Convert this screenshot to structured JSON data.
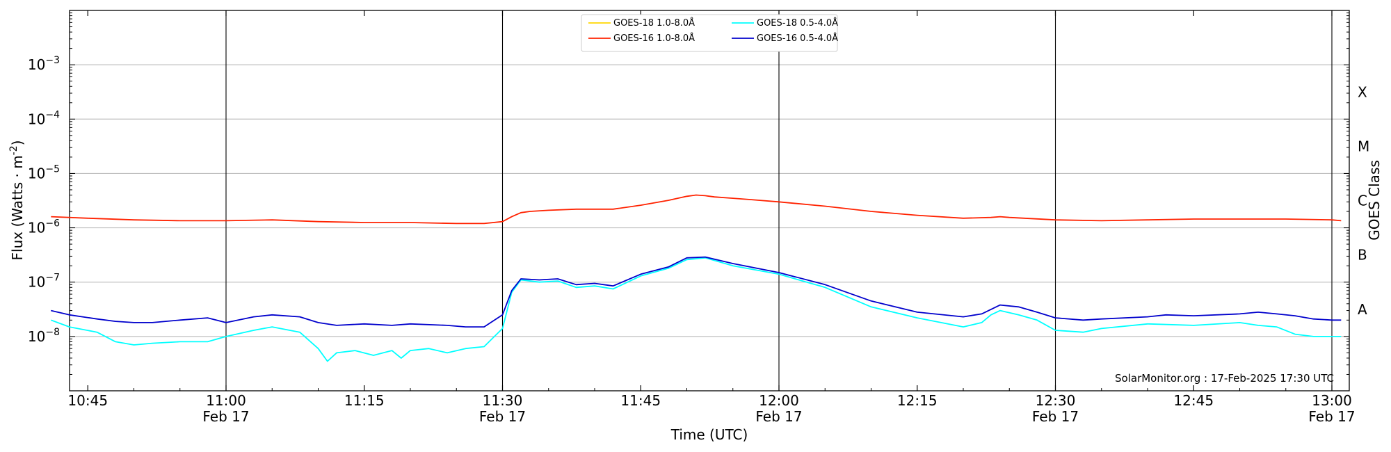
{
  "chart_data": {
    "type": "line",
    "title": "",
    "xlabel": "Time (UTC)",
    "ylabel": "Flux (Watts · m",
    "ylabel_superscript": "-2",
    "ylabel_close": ")",
    "y2label": "GOES Class",
    "yscale": "log",
    "xlim": [
      "10:41",
      "13:02"
    ],
    "ylim": [
      1e-09,
      0.01
    ],
    "grid": "horizontal",
    "legend_position": "top-center",
    "credit": "SolarMonitor.org : 17-Feb-2025 17:30 UTC",
    "x_ticks": [
      {
        "line1": "10:45",
        "line2": ""
      },
      {
        "line1": "11:00",
        "line2": "Feb 17"
      },
      {
        "line1": "11:15",
        "line2": ""
      },
      {
        "line1": "11:30",
        "line2": "Feb 17"
      },
      {
        "line1": "11:45",
        "line2": ""
      },
      {
        "line1": "12:00",
        "line2": "Feb 17"
      },
      {
        "line1": "12:15",
        "line2": ""
      },
      {
        "line1": "12:30",
        "line2": "Feb 17"
      },
      {
        "line1": "12:45",
        "line2": ""
      },
      {
        "line1": "13:00",
        "line2": "Feb 17"
      }
    ],
    "y_ticks": [
      {
        "base": "10",
        "exp": "−8",
        "value": 1e-08
      },
      {
        "base": "10",
        "exp": "−7",
        "value": 1e-07
      },
      {
        "base": "10",
        "exp": "−6",
        "value": 1e-06
      },
      {
        "base": "10",
        "exp": "−5",
        "value": 1e-05
      },
      {
        "base": "10",
        "exp": "−4",
        "value": 0.0001
      },
      {
        "base": "10",
        "exp": "−3",
        "value": 0.001
      }
    ],
    "classes": [
      {
        "label": "A",
        "value": 1e-08
      },
      {
        "label": "B",
        "value": 1e-07
      },
      {
        "label": "C",
        "value": 1e-06
      },
      {
        "label": "M",
        "value": 1e-05
      },
      {
        "label": "X",
        "value": 0.0001
      }
    ],
    "vlines": [
      "11:00",
      "11:30",
      "12:00",
      "12:30",
      "13:00"
    ],
    "series": [
      {
        "name": "GOES-18 1.0-8.0Å",
        "color": "#FFD700",
        "x": [],
        "values": []
      },
      {
        "name": "GOES-16 1.0-8.0Å",
        "color": "#FF2200",
        "x": [
          "10:41",
          "10:45",
          "10:50",
          "10:55",
          "11:00",
          "11:05",
          "11:10",
          "11:15",
          "11:20",
          "11:25",
          "11:28",
          "11:30",
          "11:31",
          "11:32",
          "11:33",
          "11:35",
          "11:38",
          "11:40",
          "11:42",
          "11:45",
          "11:48",
          "11:50",
          "11:51",
          "11:52",
          "11:53",
          "11:55",
          "11:57",
          "12:00",
          "12:05",
          "12:10",
          "12:15",
          "12:20",
          "12:23",
          "12:24",
          "12:25",
          "12:30",
          "12:35",
          "12:40",
          "12:45",
          "12:50",
          "12:55",
          "13:00",
          "13:01"
        ],
        "values": [
          1.6e-06,
          1.5e-06,
          1.4e-06,
          1.35e-06,
          1.35e-06,
          1.4e-06,
          1.3e-06,
          1.25e-06,
          1.25e-06,
          1.2e-06,
          1.2e-06,
          1.3e-06,
          1.6e-06,
          1.9e-06,
          2e-06,
          2.1e-06,
          2.2e-06,
          2.2e-06,
          2.2e-06,
          2.6e-06,
          3.2e-06,
          3.8e-06,
          4e-06,
          3.9e-06,
          3.7e-06,
          3.5e-06,
          3.3e-06,
          3e-06,
          2.5e-06,
          2e-06,
          1.7e-06,
          1.5e-06,
          1.55e-06,
          1.6e-06,
          1.55e-06,
          1.4e-06,
          1.35e-06,
          1.4e-06,
          1.45e-06,
          1.45e-06,
          1.45e-06,
          1.4e-06,
          1.35e-06
        ]
      },
      {
        "name": "GOES-18 0.5-4.0Å",
        "color": "#00FFFF",
        "x": [
          "10:41",
          "10:43",
          "10:46",
          "10:48",
          "10:50",
          "10:52",
          "10:55",
          "10:58",
          "11:00",
          "11:03",
          "11:05",
          "11:08",
          "11:10",
          "11:11",
          "11:12",
          "11:14",
          "11:16",
          "11:18",
          "11:19",
          "11:20",
          "11:22",
          "11:24",
          "11:26",
          "11:28",
          "11:30",
          "11:31",
          "11:32",
          "11:34",
          "11:36",
          "11:38",
          "11:40",
          "11:42",
          "11:45",
          "11:48",
          "11:50",
          "11:52",
          "11:55",
          "12:00",
          "12:05",
          "12:10",
          "12:15",
          "12:20",
          "12:22",
          "12:23",
          "12:24",
          "12:26",
          "12:28",
          "12:30",
          "12:33",
          "12:35",
          "12:40",
          "12:45",
          "12:50",
          "12:52",
          "12:54",
          "12:56",
          "12:58",
          "13:00",
          "13:01"
        ],
        "values": [
          2e-08,
          1.5e-08,
          1.2e-08,
          8e-09,
          7e-09,
          7.5e-09,
          8e-09,
          8e-09,
          1e-08,
          1.3e-08,
          1.5e-08,
          1.2e-08,
          6e-09,
          3.5e-09,
          5e-09,
          5.5e-09,
          4.5e-09,
          5.5e-09,
          4e-09,
          5.5e-09,
          6e-09,
          5e-09,
          6e-09,
          6.5e-09,
          1.4e-08,
          6.5e-08,
          1.1e-07,
          1e-07,
          1.05e-07,
          8e-08,
          8.5e-08,
          7.5e-08,
          1.3e-07,
          1.8e-07,
          2.6e-07,
          2.8e-07,
          2e-07,
          1.4e-07,
          8e-08,
          3.5e-08,
          2.2e-08,
          1.5e-08,
          1.8e-08,
          2.5e-08,
          3e-08,
          2.5e-08,
          2e-08,
          1.3e-08,
          1.2e-08,
          1.4e-08,
          1.7e-08,
          1.6e-08,
          1.8e-08,
          1.6e-08,
          1.5e-08,
          1.1e-08,
          1e-08,
          1e-08,
          1e-08
        ]
      },
      {
        "name": "GOES-16 0.5-4.0Å",
        "color": "#0000CC",
        "x": [
          "10:41",
          "10:43",
          "10:46",
          "10:48",
          "10:50",
          "10:52",
          "10:55",
          "10:58",
          "11:00",
          "11:03",
          "11:05",
          "11:08",
          "11:10",
          "11:12",
          "11:15",
          "11:18",
          "11:20",
          "11:24",
          "11:26",
          "11:28",
          "11:30",
          "11:31",
          "11:32",
          "11:34",
          "11:36",
          "11:38",
          "11:40",
          "11:42",
          "11:45",
          "11:48",
          "11:50",
          "11:52",
          "11:55",
          "12:00",
          "12:05",
          "12:10",
          "12:15",
          "12:20",
          "12:22",
          "12:24",
          "12:26",
          "12:28",
          "12:30",
          "12:33",
          "12:35",
          "12:40",
          "12:42",
          "12:45",
          "12:50",
          "12:52",
          "12:54",
          "12:56",
          "12:58",
          "13:00",
          "13:01"
        ],
        "values": [
          3e-08,
          2.5e-08,
          2.1e-08,
          1.9e-08,
          1.8e-08,
          1.8e-08,
          2e-08,
          2.2e-08,
          1.8e-08,
          2.3e-08,
          2.5e-08,
          2.3e-08,
          1.8e-08,
          1.6e-08,
          1.7e-08,
          1.6e-08,
          1.7e-08,
          1.6e-08,
          1.5e-08,
          1.5e-08,
          2.5e-08,
          7e-08,
          1.15e-07,
          1.1e-07,
          1.15e-07,
          9e-08,
          9.5e-08,
          8.5e-08,
          1.4e-07,
          1.9e-07,
          2.8e-07,
          2.9e-07,
          2.2e-07,
          1.5e-07,
          9e-08,
          4.5e-08,
          2.8e-08,
          2.3e-08,
          2.6e-08,
          3.8e-08,
          3.5e-08,
          2.8e-08,
          2.2e-08,
          2e-08,
          2.1e-08,
          2.3e-08,
          2.5e-08,
          2.4e-08,
          2.6e-08,
          2.8e-08,
          2.6e-08,
          2.4e-08,
          2.1e-08,
          2e-08,
          2e-08
        ]
      }
    ]
  }
}
